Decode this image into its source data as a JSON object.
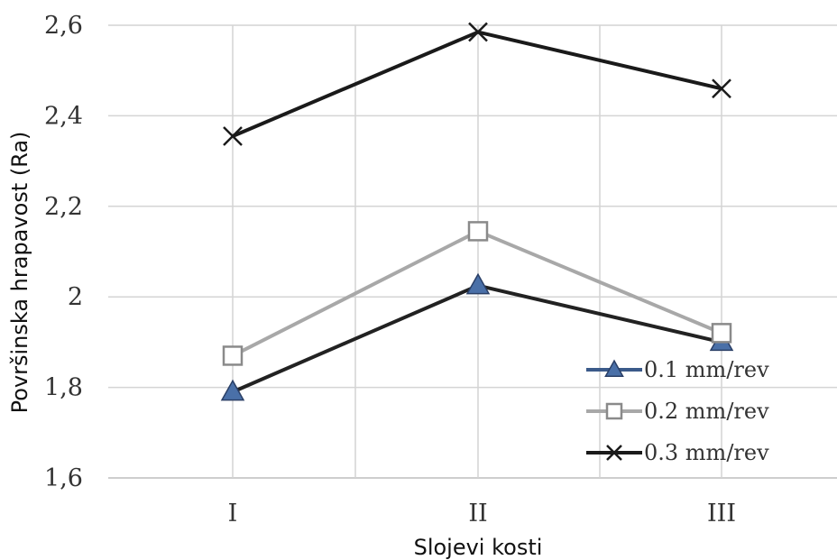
{
  "chart_data": {
    "type": "line",
    "title": "",
    "xlabel": "Slojevi kosti",
    "ylabel": "Površinska hrapavost (Ra)",
    "categories": [
      "I",
      "II",
      "III"
    ],
    "ylim": [
      1.6,
      2.6
    ],
    "yticks": [
      1.6,
      1.8,
      2.0,
      2.2,
      2.4,
      2.6
    ],
    "ytick_labels": [
      "1,6",
      "1,8",
      "2",
      "2,2",
      "2,4",
      "2,6"
    ],
    "grid": true,
    "legend_position": "bottom-right",
    "series": [
      {
        "name": "0.1 mm/rev",
        "values": [
          1.79,
          2.025,
          1.9
        ],
        "marker": "triangle",
        "line_color": "#222222",
        "marker_fill": "#4a70a8",
        "marker_stroke": "#2a3f66"
      },
      {
        "name": "0.2 mm/rev",
        "values": [
          1.87,
          2.145,
          1.92
        ],
        "marker": "square",
        "line_color": "#a8a8a8",
        "marker_fill": "#ffffff",
        "marker_stroke": "#8a8a8a"
      },
      {
        "name": "0.3 mm/rev",
        "values": [
          2.355,
          2.585,
          2.46
        ],
        "marker": "x",
        "line_color": "#1a1a1a",
        "marker_fill": "none",
        "marker_stroke": "#1a1a1a"
      }
    ]
  }
}
